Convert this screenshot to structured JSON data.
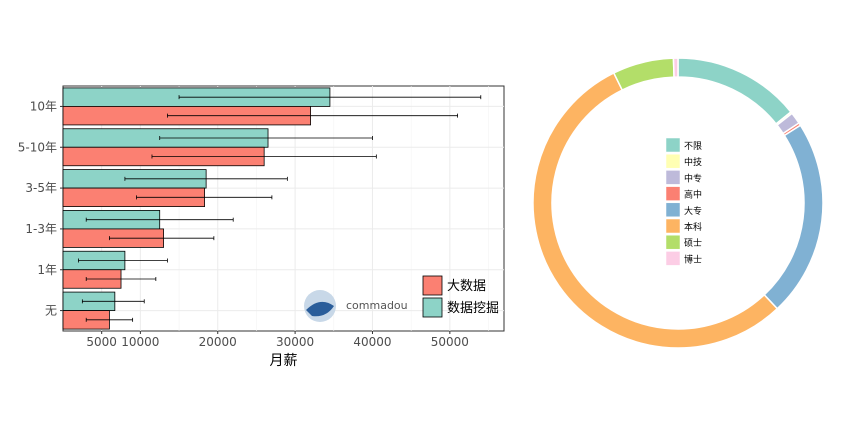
{
  "watermark": {
    "text": "commadou"
  },
  "chart_data": [
    {
      "type": "bar",
      "orientation": "horizontal",
      "title": "",
      "xlabel": "月薪",
      "ylabel": "",
      "xlim": [
        0,
        57000
      ],
      "xticks": [
        5000,
        10000,
        20000,
        30000,
        40000,
        50000
      ],
      "categories": [
        "10年",
        "5-10年",
        "3-5年",
        "1-3年",
        "1年",
        "无"
      ],
      "series": [
        {
          "name": "数据挖掘",
          "color": "#8dd3c7",
          "values": [
            34500,
            26500,
            18500,
            12500,
            8000,
            6700
          ],
          "err_low": [
            15000,
            12500,
            8000,
            3000,
            2000,
            2500
          ],
          "err_high": [
            54000,
            40000,
            29000,
            22000,
            13500,
            10500
          ]
        },
        {
          "name": "大数据",
          "color": "#fb8072",
          "values": [
            32000,
            26000,
            18300,
            13000,
            7500,
            6000
          ],
          "err_low": [
            13500,
            11500,
            9500,
            6000,
            3000,
            3000
          ],
          "err_high": [
            51000,
            40500,
            27000,
            19500,
            12000,
            9000
          ]
        }
      ],
      "grid": true,
      "legend_position": "bottom-right",
      "legend_order": [
        "大数据",
        "数据挖掘"
      ]
    },
    {
      "type": "pie",
      "style": "donut",
      "labels": [
        "不限",
        "中技",
        "中专",
        "高中",
        "大专",
        "本科",
        "硕士",
        "博士"
      ],
      "values": [
        14.2,
        0.2,
        1.3,
        0.3,
        22.0,
        54.7,
        6.8,
        0.5
      ],
      "colors": [
        "#8dd3c7",
        "#ffffb3",
        "#bebada",
        "#fb8072",
        "#80b1d3",
        "#fdb462",
        "#b3de69",
        "#fccde5"
      ],
      "legend_position": "center"
    }
  ]
}
